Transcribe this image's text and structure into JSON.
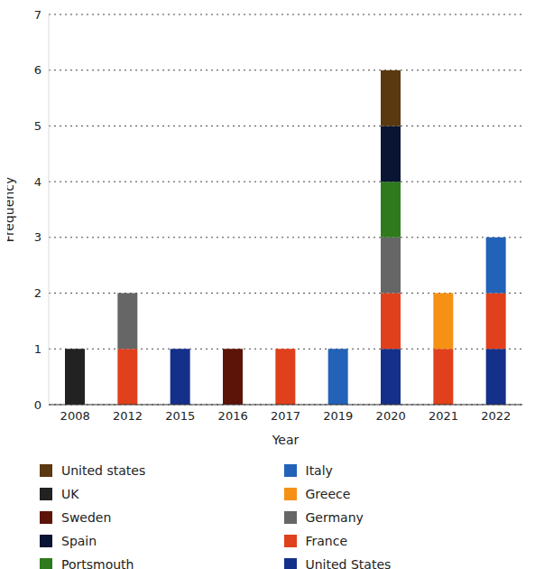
{
  "chart_data": {
    "type": "bar",
    "stacked": true,
    "grid": true,
    "xlabel": "Year",
    "ylabel": "Frequency",
    "ylim": [
      0,
      7
    ],
    "yticks": [
      0,
      1,
      2,
      3,
      4,
      5,
      6,
      7
    ],
    "categories": [
      "2008",
      "2012",
      "2015",
      "2016",
      "2017",
      "2019",
      "2020",
      "2021",
      "2022"
    ],
    "series": [
      {
        "name": "United states",
        "color": "#5a3810",
        "values": [
          0,
          0,
          0,
          0,
          0,
          0,
          1,
          0,
          0
        ]
      },
      {
        "name": "UK",
        "color": "#222222",
        "values": [
          1,
          0,
          0,
          0,
          0,
          0,
          0,
          0,
          0
        ]
      },
      {
        "name": "Sweden",
        "color": "#5c1408",
        "values": [
          0,
          0,
          0,
          1,
          0,
          0,
          0,
          0,
          0
        ]
      },
      {
        "name": "Spain",
        "color": "#0a1433",
        "values": [
          0,
          0,
          0,
          0,
          0,
          0,
          1,
          0,
          0
        ]
      },
      {
        "name": "Portsmouth",
        "color": "#2e7a1c",
        "values": [
          0,
          0,
          0,
          0,
          0,
          0,
          1,
          0,
          0
        ]
      },
      {
        "name": "Italy",
        "color": "#2262b8",
        "values": [
          0,
          0,
          0,
          0,
          0,
          1,
          0,
          0,
          1
        ]
      },
      {
        "name": "Greece",
        "color": "#f59216",
        "values": [
          0,
          0,
          0,
          0,
          0,
          0,
          0,
          1,
          0
        ]
      },
      {
        "name": "Germany",
        "color": "#666666",
        "values": [
          0,
          1,
          0,
          0,
          0,
          0,
          1,
          0,
          0
        ]
      },
      {
        "name": "France",
        "color": "#e0401c",
        "values": [
          0,
          1,
          0,
          0,
          1,
          0,
          1,
          1,
          1
        ]
      },
      {
        "name": "United States",
        "color": "#15308a",
        "values": [
          0,
          0,
          1,
          0,
          0,
          0,
          1,
          0,
          1
        ]
      }
    ]
  }
}
